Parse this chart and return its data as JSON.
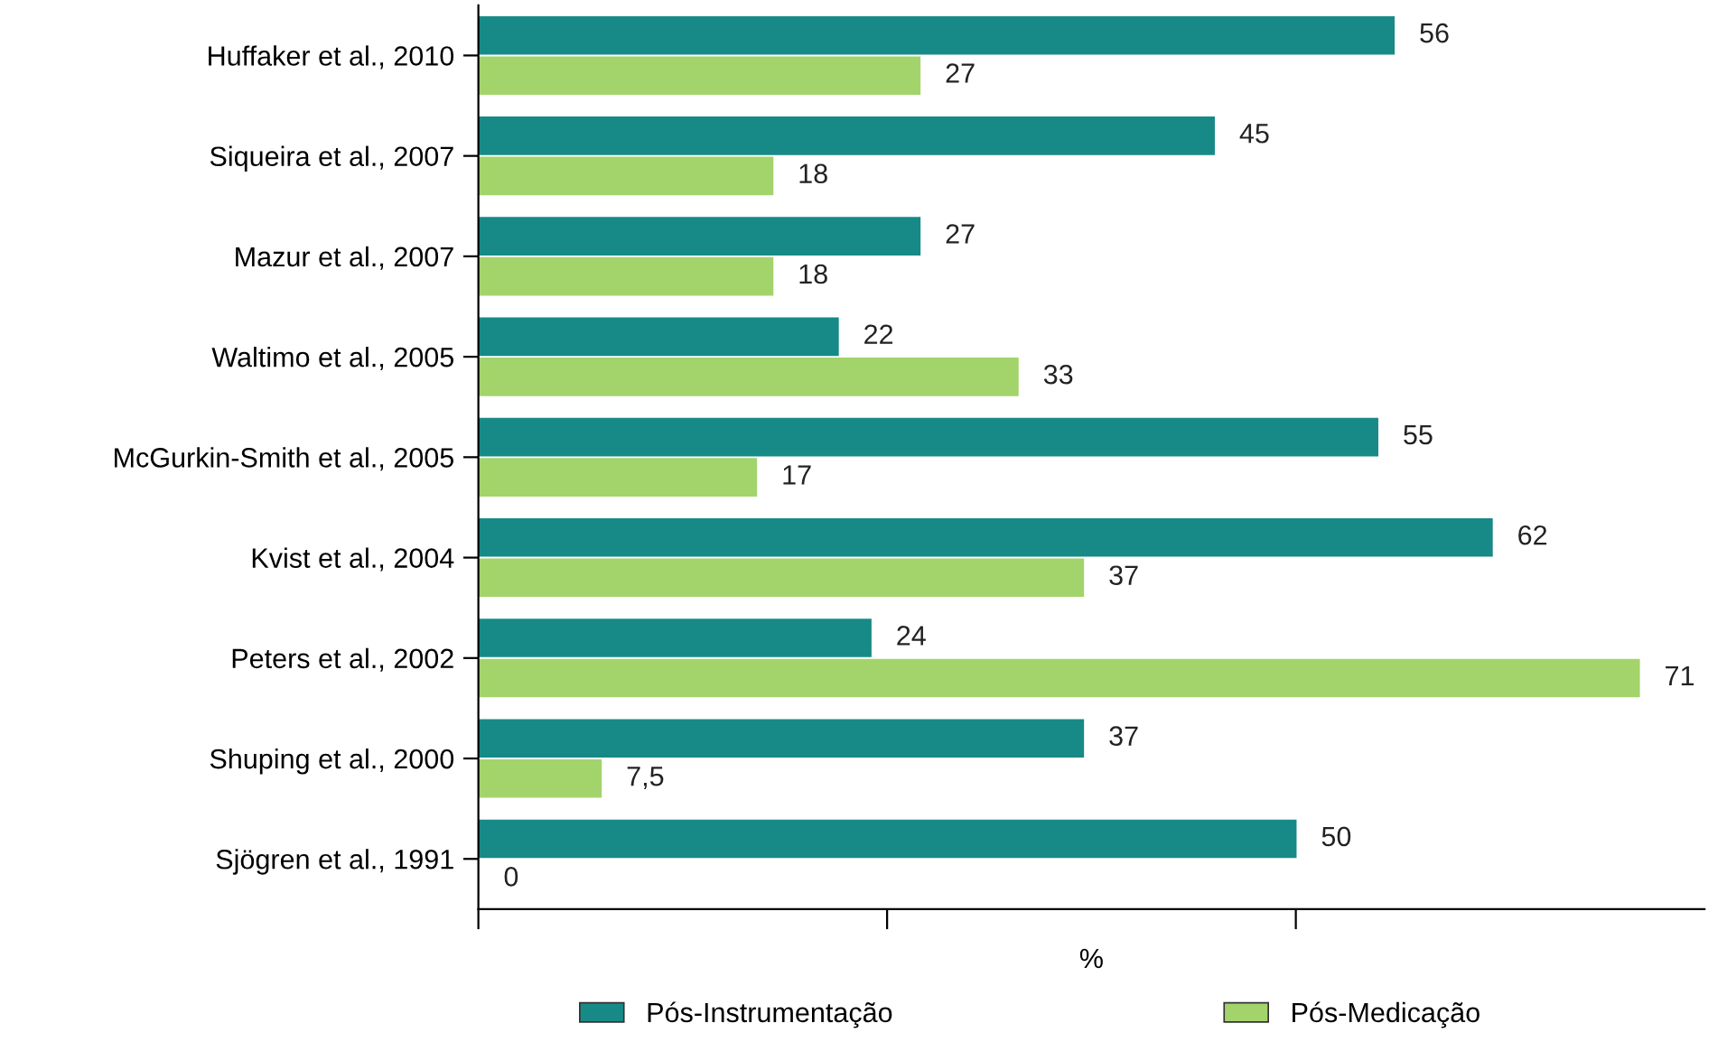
{
  "chart_data": {
    "type": "bar",
    "orientation": "horizontal",
    "xlabel": "%",
    "categories": [
      "Huffaker et al., 2010",
      "Siqueira et al., 2007",
      "Mazur et al., 2007",
      "Waltimo et al., 2005",
      "McGurkin-Smith et al., 2005",
      "Kvist et al., 2004",
      "Peters et al., 2002",
      "Shuping et al., 2000",
      "Sjögren et al., 1991"
    ],
    "series": [
      {
        "name": "Pós-Instrumentação",
        "color": "#178a87",
        "values": [
          56,
          45,
          27,
          22,
          55,
          62,
          24,
          37,
          50
        ],
        "value_labels": [
          "56",
          "45",
          "27",
          "22",
          "55",
          "62",
          "24",
          "37",
          "50"
        ]
      },
      {
        "name": "Pós-Medicação",
        "color": "#a3d46c",
        "values": [
          27,
          18,
          18,
          33,
          17,
          37,
          71,
          7.5,
          0
        ],
        "value_labels": [
          "27",
          "18",
          "18",
          "33",
          "17",
          "37",
          "71",
          "7,5",
          "0"
        ]
      }
    ],
    "xlim": [
      0,
      75
    ],
    "xticks": [
      {
        "value": 0,
        "label": null
      },
      {
        "value": 25,
        "label": null
      },
      {
        "value": 50,
        "label": null
      }
    ],
    "grid": false,
    "legend": "bottom"
  }
}
